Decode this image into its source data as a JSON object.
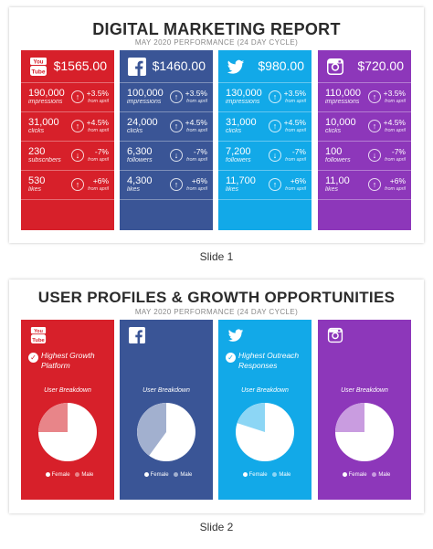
{
  "slide1": {
    "title": "DIGITAL MARKETING REPORT",
    "subtitle": "MAY 2020 PERFORMANCE (24 DAY CYCLE)",
    "caption": "Slide 1",
    "cards": [
      {
        "platform": "youtube",
        "icon": "youtube-logo-icon",
        "color": "#d7202a",
        "amount": "$1565.00",
        "metrics": [
          {
            "value": "190,000",
            "label": "impressions",
            "direction": "up",
            "change": "+3.5%",
            "from": "from april"
          },
          {
            "value": "31,000",
            "label": "clicks",
            "direction": "up",
            "change": "+4.5%",
            "from": "from april"
          },
          {
            "value": "230",
            "label": "subscribers",
            "direction": "down",
            "change": "-7%",
            "from": "from april"
          },
          {
            "value": "530",
            "label": "likes",
            "direction": "up",
            "change": "+6%",
            "from": "from april"
          }
        ]
      },
      {
        "platform": "facebook",
        "icon": "facebook-logo-icon",
        "color": "#3a5596",
        "amount": "$1460.00",
        "metrics": [
          {
            "value": "100,000",
            "label": "impressions",
            "direction": "up",
            "change": "+3.5%",
            "from": "from april"
          },
          {
            "value": "24,000",
            "label": "clicks",
            "direction": "up",
            "change": "+4.5%",
            "from": "from april"
          },
          {
            "value": "6,300",
            "label": "followers",
            "direction": "down",
            "change": "-7%",
            "from": "from april"
          },
          {
            "value": "4,300",
            "label": "likes",
            "direction": "up",
            "change": "+6%",
            "from": "from april"
          }
        ]
      },
      {
        "platform": "twitter",
        "icon": "twitter-logo-icon",
        "color": "#12a9e8",
        "amount": "$980.00",
        "metrics": [
          {
            "value": "130,000",
            "label": "impressions",
            "direction": "up",
            "change": "+3.5%",
            "from": "from april"
          },
          {
            "value": "31,000",
            "label": "clicks",
            "direction": "up",
            "change": "+4.5%",
            "from": "from april"
          },
          {
            "value": "7,200",
            "label": "followers",
            "direction": "down",
            "change": "-7%",
            "from": "from april"
          },
          {
            "value": "11,700",
            "label": "likes",
            "direction": "up",
            "change": "+6%",
            "from": "from april"
          }
        ]
      },
      {
        "platform": "instagram",
        "icon": "instagram-logo-icon",
        "color": "#8d37ba",
        "amount": "$720.00",
        "metrics": [
          {
            "value": "110,000",
            "label": "impressions",
            "direction": "up",
            "change": "+3.5%",
            "from": "from april"
          },
          {
            "value": "10,000",
            "label": "clicks",
            "direction": "up",
            "change": "+4.5%",
            "from": "from april"
          },
          {
            "value": "100",
            "label": "followers",
            "direction": "down",
            "change": "-7%",
            "from": "from april"
          },
          {
            "value": "11,00",
            "label": "likes",
            "direction": "up",
            "change": "+6%",
            "from": "from april"
          }
        ]
      }
    ]
  },
  "slide2": {
    "title": "USER PROFILES & GROWTH OPPORTUNITIES",
    "subtitle": "MAY 2020 PERFORMANCE (24 DAY CYCLE)",
    "caption": "Slide 2",
    "cards": [
      {
        "platform": "youtube",
        "icon": "youtube-logo-icon",
        "color": "#d7202a",
        "highlight": "Highest Growth Platform",
        "breakdown": "User Breakdown",
        "female_label": "Female",
        "male_label": "Male",
        "male_share": 0.25,
        "male_color": "#e88589"
      },
      {
        "platform": "facebook",
        "icon": "facebook-logo-icon",
        "color": "#3a5596",
        "highlight": "",
        "breakdown": "User Breakdown",
        "female_label": "Female",
        "male_label": "Male",
        "male_share": 0.4,
        "male_color": "#a2b0cf"
      },
      {
        "platform": "twitter",
        "icon": "twitter-logo-icon",
        "color": "#12a9e8",
        "highlight": "Highest Outreach Responses",
        "breakdown": "User Breakdown",
        "female_label": "Female",
        "male_label": "Male",
        "male_share": 0.2,
        "male_color": "#8cd6f5"
      },
      {
        "platform": "instagram",
        "icon": "instagram-logo-icon",
        "color": "#8d37ba",
        "highlight": "",
        "breakdown": "User Breakdown",
        "female_label": "Female",
        "male_label": "Male",
        "male_share": 0.25,
        "male_color": "#c99ce0"
      }
    ]
  }
}
